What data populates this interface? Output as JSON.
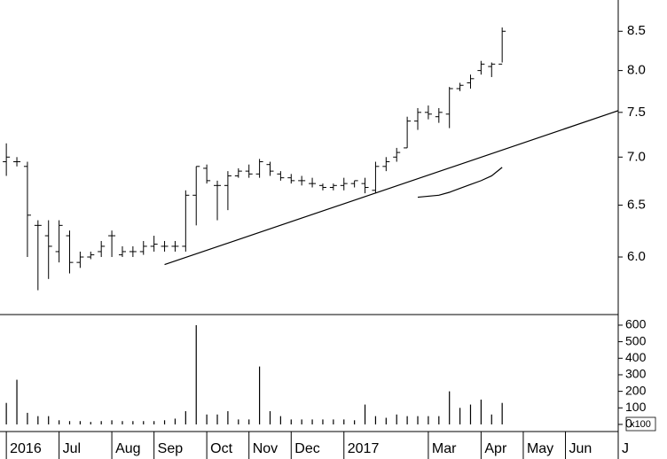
{
  "chart_data": [
    {
      "type": "ohlc",
      "open": [
        6.95,
        6.95,
        6.9,
        6.3,
        6.2,
        6.05,
        6.2,
        5.95,
        6.0,
        6.05,
        6.2,
        6.02,
        6.05,
        6.05,
        6.1,
        6.1,
        6.1,
        6.1,
        6.6,
        6.88,
        6.7,
        6.7,
        6.8,
        6.85,
        6.82,
        6.92,
        6.82,
        6.78,
        6.75,
        6.72,
        6.7,
        6.68,
        6.7,
        6.72,
        6.72,
        6.65,
        6.9,
        7.0,
        7.1,
        7.4,
        7.5,
        7.45,
        7.48,
        7.78,
        7.85,
        8.0,
        8.05,
        8.08
      ],
      "high": [
        7.15,
        7.0,
        6.95,
        6.35,
        6.35,
        6.35,
        6.25,
        6.05,
        6.05,
        6.15,
        6.25,
        6.1,
        6.1,
        6.15,
        6.2,
        6.15,
        6.15,
        6.65,
        6.9,
        6.92,
        6.75,
        6.85,
        6.88,
        6.92,
        6.98,
        6.95,
        6.85,
        6.82,
        6.8,
        6.78,
        6.72,
        6.72,
        6.78,
        6.75,
        6.78,
        6.95,
        7.0,
        7.1,
        7.45,
        7.55,
        7.58,
        7.55,
        7.8,
        7.85,
        7.95,
        8.12,
        8.1,
        8.55
      ],
      "low": [
        6.8,
        6.9,
        6.0,
        5.7,
        5.8,
        5.95,
        5.85,
        5.9,
        5.98,
        6.0,
        6.0,
        6.0,
        6.0,
        6.02,
        6.05,
        6.05,
        6.05,
        6.05,
        6.3,
        6.72,
        6.35,
        6.45,
        6.78,
        6.78,
        6.78,
        6.8,
        6.75,
        6.72,
        6.7,
        6.68,
        6.65,
        6.65,
        6.65,
        6.68,
        6.62,
        6.62,
        6.85,
        6.95,
        7.1,
        7.3,
        7.42,
        7.38,
        7.32,
        7.75,
        7.78,
        7.95,
        7.92,
        8.1
      ],
      "close": [
        7.0,
        6.95,
        6.4,
        6.3,
        6.1,
        6.3,
        5.95,
        6.0,
        6.02,
        6.1,
        6.2,
        6.05,
        6.05,
        6.1,
        6.12,
        6.1,
        6.1,
        6.6,
        6.9,
        6.75,
        6.7,
        6.8,
        6.85,
        6.82,
        6.95,
        6.85,
        6.78,
        6.75,
        6.75,
        6.72,
        6.68,
        6.7,
        6.72,
        6.75,
        6.68,
        6.9,
        6.95,
        7.05,
        7.4,
        7.5,
        7.48,
        7.5,
        7.78,
        7.82,
        7.9,
        8.08,
        8.08,
        8.5
      ],
      "color": "#000000",
      "log_scale": true,
      "ylim": [
        5.49,
        8.92
      ],
      "yticks": [
        {
          "value": 6,
          "label": "6.0"
        },
        6.5,
        {
          "value": 7,
          "label": "7.0"
        },
        7.5,
        {
          "value": 8,
          "label": "8.0"
        },
        8.5
      ],
      "xlim": [
        -0.6,
        58
      ],
      "xticks": [
        {
          "value": 0,
          "label": "2016"
        },
        {
          "value": 5,
          "label": "Jul"
        },
        {
          "value": 10,
          "label": "Aug"
        },
        {
          "value": 14,
          "label": "Sep"
        },
        {
          "value": 19,
          "label": "Oct"
        },
        {
          "value": 23,
          "label": "Nov"
        },
        {
          "value": 27,
          "label": "Dec"
        },
        {
          "value": 32,
          "label": "2017"
        },
        {
          "value": 40,
          "label": "Mar"
        },
        {
          "value": 45,
          "label": "Apr"
        },
        {
          "value": 49,
          "label": "May"
        },
        {
          "value": 53,
          "label": "Jun"
        },
        {
          "value": 58,
          "label": "J"
        }
      ],
      "lines": [
        {
          "x": [
            15,
            58
          ],
          "values": [
            5.93,
            7.52
          ]
        },
        {
          "x": [
            39,
            40,
            41,
            42,
            43,
            44,
            45,
            46,
            47
          ],
          "values": [
            6.58,
            6.59,
            6.6,
            6.63,
            6.67,
            6.71,
            6.75,
            6.8,
            6.89
          ]
        }
      ]
    },
    {
      "type": "bar",
      "values": [
        130,
        270,
        70,
        50,
        50,
        25,
        20,
        20,
        15,
        20,
        25,
        20,
        20,
        20,
        20,
        25,
        35,
        80,
        600,
        60,
        60,
        80,
        30,
        30,
        350,
        80,
        50,
        30,
        30,
        30,
        30,
        30,
        30,
        25,
        120,
        50,
        40,
        60,
        50,
        50,
        50,
        50,
        200,
        100,
        120,
        150,
        60,
        130
      ],
      "color": "#000000",
      "ylim": [
        -43,
        664
      ],
      "yticks": [
        0,
        100,
        200,
        300,
        400,
        500,
        600
      ],
      "unit_label": "x100"
    }
  ]
}
